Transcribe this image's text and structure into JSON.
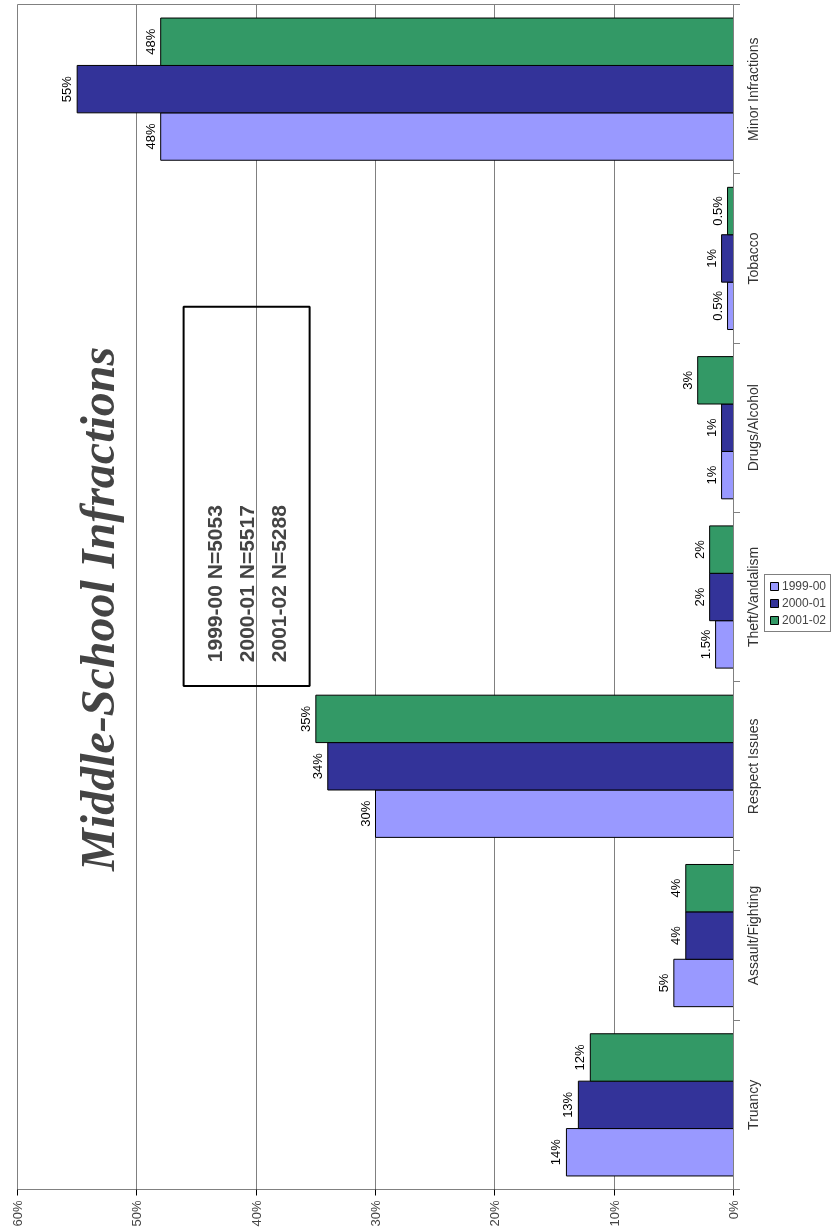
{
  "chart_data": {
    "type": "bar",
    "orientation": "horizontal",
    "title": "Middle-School Infractions",
    "categories": [
      "Minor Infractions",
      "Tobacco",
      "Drugs/Alcohol",
      "Theft/Vandalism",
      "Respect Issues",
      "Assault/Fighting",
      "Truancy"
    ],
    "series": [
      {
        "name": "1999-00",
        "color": "#9999ff",
        "values": [
          48,
          0.5,
          1,
          1.5,
          30,
          5,
          14
        ],
        "value_labels": [
          "48%",
          "0.5%",
          "1%",
          "1.5%",
          "30%",
          "5%",
          "14%"
        ]
      },
      {
        "name": "2000-01",
        "color": "#333399",
        "values": [
          55,
          1,
          1,
          2,
          34,
          4,
          13
        ],
        "value_labels": [
          "55%",
          "1%",
          "1%",
          "2%",
          "34%",
          "4%",
          "13%"
        ]
      },
      {
        "name": "2001-02",
        "color": "#339966",
        "values": [
          48,
          0.5,
          3,
          2,
          35,
          4,
          12
        ],
        "value_labels": [
          "48%",
          "0.5%",
          "3%",
          "2%",
          "35%",
          "4%",
          "12%"
        ]
      }
    ],
    "xlim": [
      60,
      0
    ],
    "xticks": [
      {
        "value": 0,
        "label": "0%"
      },
      {
        "value": 10,
        "label": "10%"
      },
      {
        "value": 20,
        "label": "20%"
      },
      {
        "value": 30,
        "label": "30%"
      },
      {
        "value": 40,
        "label": "40%"
      },
      {
        "value": 50,
        "label": "50%"
      },
      {
        "value": 60,
        "label": "60%"
      }
    ],
    "grid": "x",
    "legend": "right",
    "annotations": [
      "1999-00 N=5053",
      "2000-01 N=5517",
      "2001-02 N=5288"
    ]
  }
}
